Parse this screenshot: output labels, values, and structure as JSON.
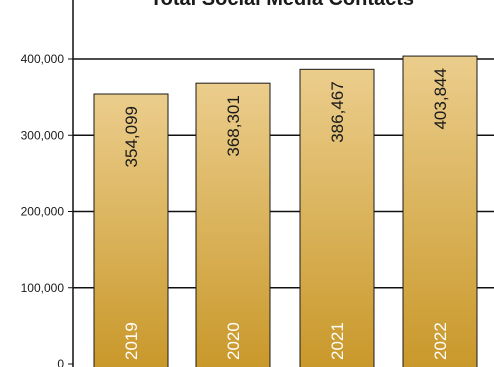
{
  "chart_data": {
    "type": "bar",
    "title": "Total Social Media Contacts",
    "categories": [
      "2019",
      "2020",
      "2021",
      "2022"
    ],
    "values": [
      354099,
      368301,
      386467,
      403844
    ],
    "value_labels": [
      "354,099",
      "368,301",
      "386,467",
      "403,844"
    ],
    "yticks": [
      0,
      100000,
      200000,
      300000,
      400000
    ],
    "ytick_labels": [
      "0",
      "100,000",
      "200,000",
      "300,000",
      "400,000"
    ],
    "ylim": [
      0,
      400000
    ],
    "xlabel": "",
    "ylabel": "",
    "grid": true,
    "colors": {
      "bar_top": "#ebcd8c",
      "bar_bottom": "#c9982a",
      "bar_stroke": "#1a1a1a",
      "grid": "#111111",
      "axis": "#111111"
    }
  }
}
